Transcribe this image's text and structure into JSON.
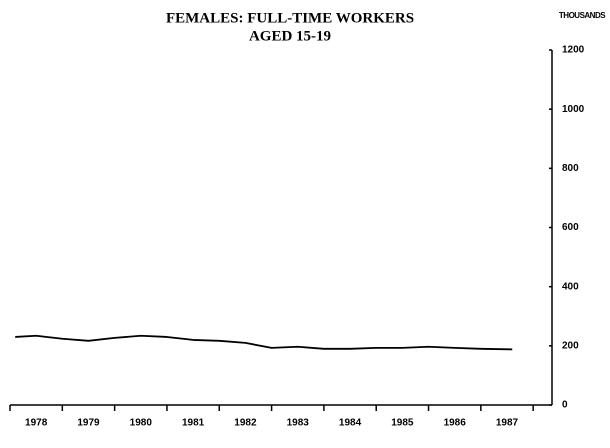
{
  "chart_data": {
    "type": "line",
    "title": "FEMALES: FULL-TIME WORKERS",
    "subtitle": "AGED 15-19",
    "y_axis_label": "THOUSANDS",
    "categories": [
      "1978",
      "1979",
      "1980",
      "1981",
      "1982",
      "1983",
      "1984",
      "1985",
      "1986",
      "1987"
    ],
    "x": [
      1978.1,
      1978.5,
      1979.0,
      1979.5,
      1980.0,
      1980.5,
      1981.0,
      1981.5,
      1982.0,
      1982.5,
      1983.0,
      1983.5,
      1984.0,
      1984.5,
      1985.0,
      1985.5,
      1986.0,
      1986.5,
      1987.0,
      1987.6
    ],
    "values": [
      230,
      234,
      224,
      217,
      227,
      234,
      230,
      220,
      217,
      210,
      193,
      197,
      190,
      190,
      193,
      193,
      197,
      193,
      190,
      188
    ],
    "color": "#000000",
    "xlim": [
      1978,
      1988.36
    ],
    "xticks": [
      1978,
      1979,
      1980,
      1981,
      1982,
      1983,
      1984,
      1985,
      1986,
      1987,
      1988
    ],
    "ylim": [
      0,
      1200
    ],
    "yticks": [
      0,
      200,
      400,
      600,
      800,
      1000,
      1200
    ],
    "y_axis_side": "right"
  }
}
